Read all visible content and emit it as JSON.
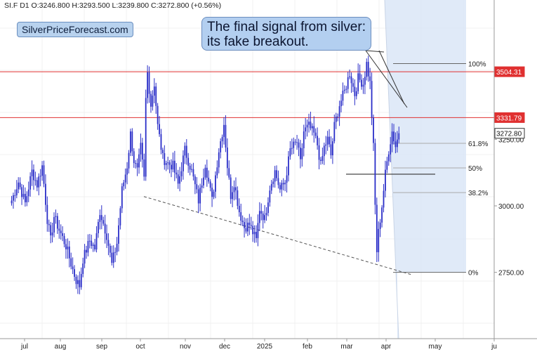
{
  "header": {
    "symbol": "SI.F",
    "interval": "D1",
    "ohlc": "O:3246.800 H:3293.500 L:3239.800 C:3272.800 (+0.56%)"
  },
  "brand": {
    "label": "SilverPriceForecast.com"
  },
  "callout": {
    "line1": "The final signal from silver:",
    "line2": "its fake breakout."
  },
  "colors": {
    "candle": "#2a2ec8",
    "resistance": "#e03030",
    "fib_fill": "#dbe6f7",
    "callout_bg": "#b3cff0"
  },
  "chart_data": {
    "type": "candlestick",
    "title": "SI.F D1",
    "x_tick_labels": [
      "jul",
      "aug",
      "sep",
      "oct",
      "nov",
      "dec",
      "2025",
      "feb",
      "mar",
      "apr",
      "may",
      "ju"
    ],
    "y_tick_labels": [
      "2750.00",
      "3000.00",
      "3250.00"
    ],
    "ylim": [
      2580,
      3700
    ],
    "last_price": 3272.8,
    "last_price_label": "3272.80",
    "resistance_levels": [
      {
        "value": 3504.31,
        "label": "3504.31"
      },
      {
        "value": 3331.79,
        "label": "3331.79"
      }
    ],
    "fibonacci": {
      "high": 3535,
      "low": 2750,
      "levels": [
        {
          "ratio": 1.0,
          "label": "100%"
        },
        {
          "ratio": 0.618,
          "label": "61.8%"
        },
        {
          "ratio": 0.5,
          "label": "50%"
        },
        {
          "ratio": 0.382,
          "label": "38.2%"
        },
        {
          "ratio": 0.0,
          "label": "0%"
        }
      ]
    },
    "anchors": [
      [
        6,
        3020
      ],
      [
        10,
        3090
      ],
      [
        14,
        3010
      ],
      [
        18,
        3130
      ],
      [
        21,
        3080
      ],
      [
        24,
        3150
      ],
      [
        27,
        2950
      ],
      [
        29,
        2870
      ],
      [
        31,
        2960
      ],
      [
        34,
        2910
      ],
      [
        38,
        2850
      ],
      [
        42,
        2760
      ],
      [
        44,
        2720
      ],
      [
        46,
        2700
      ],
      [
        48,
        2800
      ],
      [
        52,
        2870
      ],
      [
        55,
        2840
      ],
      [
        58,
        2980
      ],
      [
        62,
        2890
      ],
      [
        65,
        2780
      ],
      [
        68,
        2860
      ],
      [
        71,
        3060
      ],
      [
        74,
        3150
      ],
      [
        76,
        3270
      ],
      [
        78,
        3170
      ],
      [
        80,
        3130
      ],
      [
        82,
        3220
      ],
      [
        84,
        3100
      ],
      [
        85,
        3400
      ],
      [
        86,
        3500
      ],
      [
        88,
        3380
      ],
      [
        90,
        3460
      ],
      [
        92,
        3300
      ],
      [
        95,
        3180
      ],
      [
        98,
        3160
      ],
      [
        101,
        3150
      ],
      [
        104,
        3080
      ],
      [
        108,
        3210
      ],
      [
        112,
        3130
      ],
      [
        116,
        3020
      ],
      [
        120,
        3160
      ],
      [
        124,
        3020
      ],
      [
        128,
        3210
      ],
      [
        131,
        3310
      ],
      [
        133,
        3150
      ],
      [
        135,
        3040
      ],
      [
        137,
        3090
      ],
      [
        140,
        2980
      ],
      [
        143,
        2920
      ],
      [
        146,
        2930
      ],
      [
        150,
        2870
      ],
      [
        152,
        2990
      ],
      [
        155,
        2950
      ],
      [
        158,
        3070
      ],
      [
        161,
        3130
      ],
      [
        164,
        3060
      ],
      [
        167,
        3090
      ],
      [
        170,
        3210
      ],
      [
        174,
        3240
      ],
      [
        176,
        3160
      ],
      [
        178,
        3280
      ],
      [
        181,
        3300
      ],
      [
        184,
        3270
      ],
      [
        186,
        3230
      ],
      [
        188,
        3150
      ],
      [
        190,
        3220
      ],
      [
        192,
        3250
      ],
      [
        194,
        3190
      ],
      [
        196,
        3300
      ],
      [
        199,
        3380
      ],
      [
        202,
        3430
      ],
      [
        205,
        3500
      ],
      [
        208,
        3420
      ],
      [
        210,
        3480
      ],
      [
        213,
        3460
      ],
      [
        215,
        3535
      ],
      [
        217,
        3460
      ],
      [
        219,
        3220
      ],
      [
        220,
        3000
      ],
      [
        221,
        2830
      ],
      [
        222,
        2900
      ],
      [
        224,
        3000
      ],
      [
        226,
        3120
      ],
      [
        228,
        3210
      ],
      [
        230,
        3280
      ],
      [
        232,
        3225
      ],
      [
        234,
        3273
      ]
    ]
  }
}
